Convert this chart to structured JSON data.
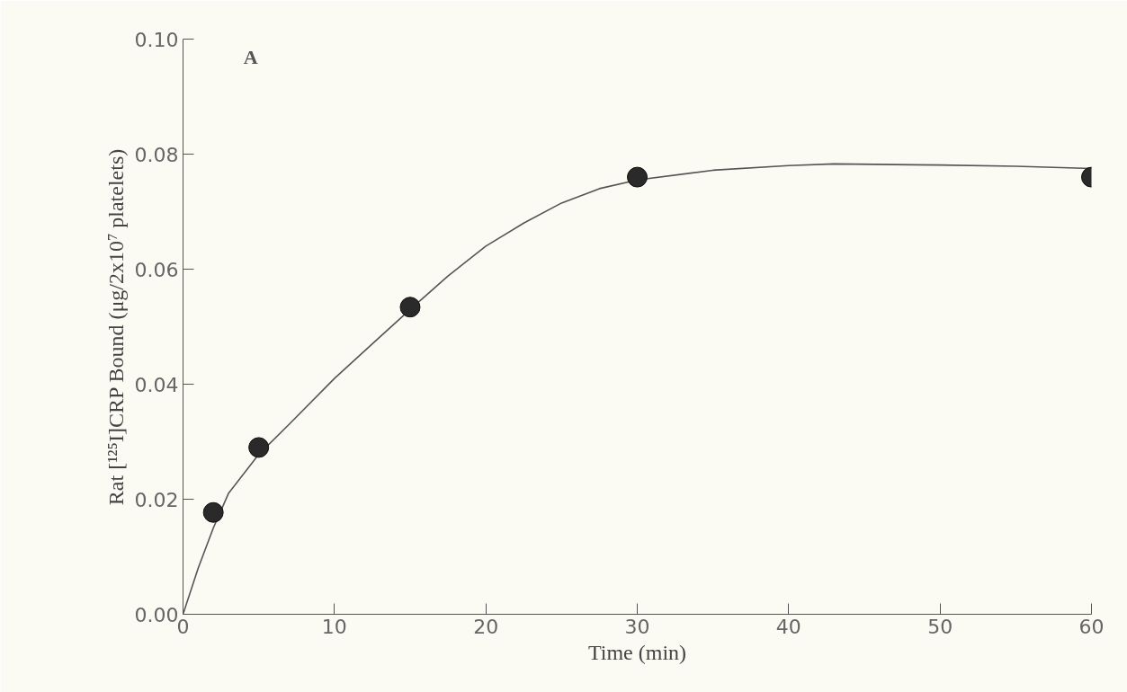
{
  "chart_data": {
    "type": "scatter",
    "xlabel": "Time (min)",
    "ylabel": "Rat [¹²⁵I]CRP Bound (μg/2x10⁷ platelets)",
    "annotations": [
      "A"
    ],
    "xlim": [
      0,
      60
    ],
    "ylim": [
      0,
      0.1
    ],
    "xticks": [
      0,
      10,
      20,
      30,
      40,
      50,
      60
    ],
    "yticks": [
      {
        "value": 0,
        "label": "0.00"
      },
      {
        "value": 0.02,
        "label": "0.02"
      },
      {
        "value": 0.04,
        "label": "0.04"
      },
      {
        "value": 0.06,
        "label": "0.06"
      },
      {
        "value": 0.08,
        "label": "0.08"
      },
      {
        "value": 0.1,
        "label": "0.10"
      }
    ],
    "grid": false,
    "series": [
      {
        "type": "line",
        "marker": "none",
        "color": "#555555",
        "x": [
          0,
          1,
          2,
          3,
          5,
          7,
          10,
          12.5,
          15,
          17.5,
          20,
          22.5,
          25,
          27.5,
          30,
          35,
          40,
          43,
          50,
          55,
          60
        ],
        "values": [
          0,
          0.008,
          0.015,
          0.021,
          0.0278,
          0.033,
          0.041,
          0.047,
          0.053,
          0.0588,
          0.064,
          0.068,
          0.0715,
          0.074,
          0.0755,
          0.0772,
          0.078,
          0.0783,
          0.0781,
          0.0779,
          0.0775
        ]
      },
      {
        "marker": "circle",
        "color": "#2a2a2a",
        "x": [
          2,
          5,
          15,
          30,
          60
        ],
        "values": [
          0.0177,
          0.029,
          0.0534,
          0.076,
          0.076
        ]
      }
    ]
  }
}
